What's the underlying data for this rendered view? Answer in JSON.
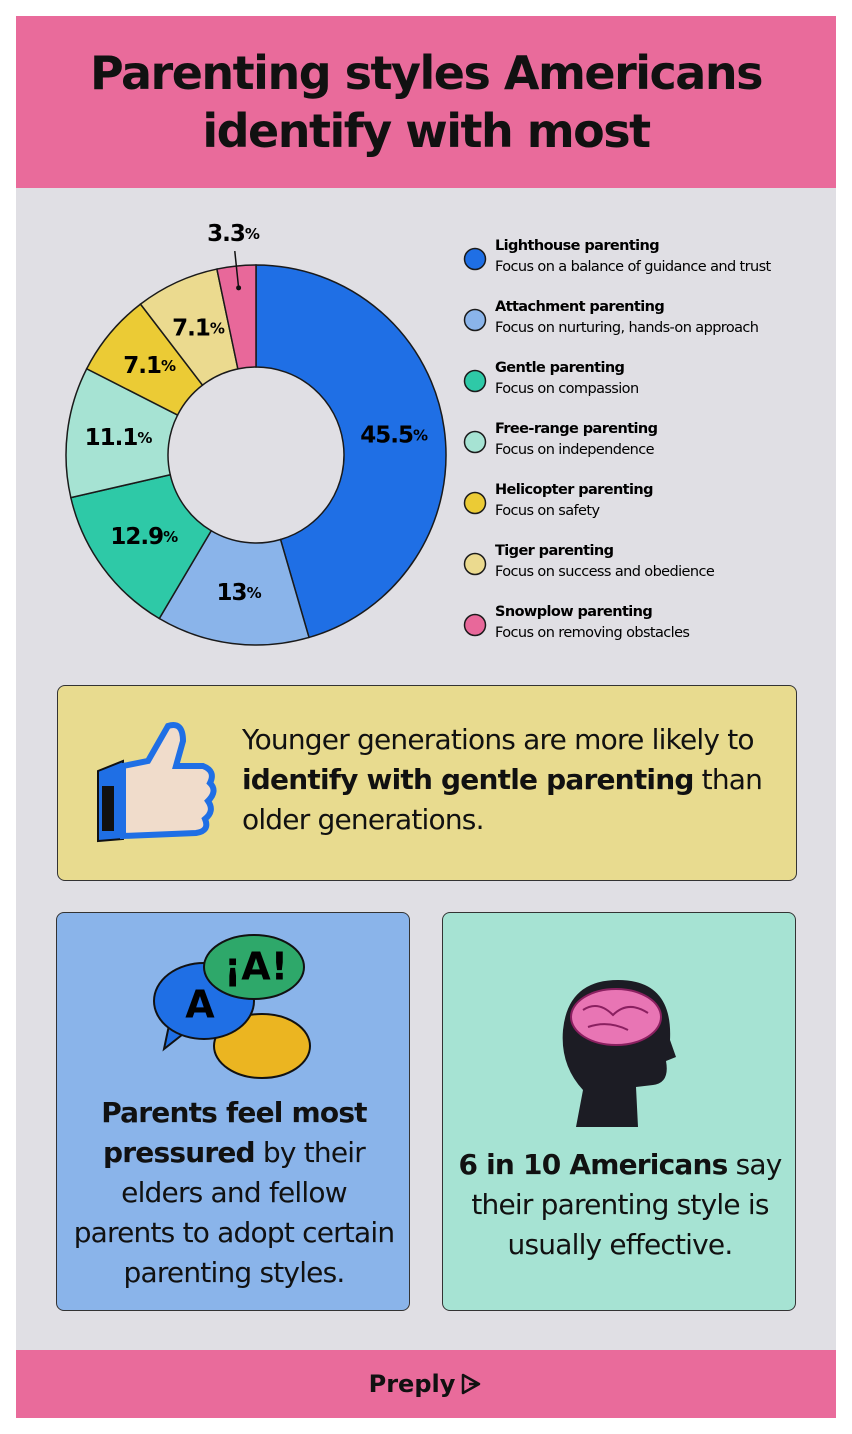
{
  "header": {
    "title": "Parenting styles Americans identify with most"
  },
  "chart_data": {
    "type": "donut",
    "categories": [
      "Lighthouse parenting",
      "Attachment parenting",
      "Gentle parenting",
      "Free-range parenting",
      "Helicopter parenting",
      "Tiger parenting",
      "Snowplow parenting"
    ],
    "descriptions": [
      "Focus on a balance of guidance and trust",
      "Focus on nurturing, hands-on approach",
      "Focus on compassion",
      "Focus on independence",
      "Focus on safety",
      "Focus on success and obedience",
      "Focus on removing obstacles"
    ],
    "values": [
      45.5,
      13,
      12.9,
      11.1,
      7.1,
      7.1,
      3.3
    ],
    "value_labels": [
      "45.5%",
      "13%",
      "12.9%",
      "11.1%",
      "7.1%",
      "7.1%",
      "3.3%"
    ],
    "colors": [
      "#1f6fe5",
      "#8ab4ea",
      "#2ec9a7",
      "#a6e3d3",
      "#ebcb35",
      "#ebda8f",
      "#e8689a"
    ]
  },
  "callouts": [
    {
      "parts": [
        {
          "text": "Younger generations are more likely to ",
          "bold": false
        },
        {
          "text": "identify with gentle parenting",
          "bold": true
        },
        {
          "text": " than older generations.",
          "bold": false
        }
      ]
    },
    {
      "icon_labels": [
        "¡A!",
        "A"
      ],
      "parts": [
        {
          "text": "Parents feel most pressured",
          "bold": true
        },
        {
          "text": " by their elders and fellow parents to adopt certain parenting styles.",
          "bold": false
        }
      ]
    },
    {
      "parts": [
        {
          "text": "6 in 10 Americans",
          "bold": true
        },
        {
          "text": " say their parenting style is usually effective.",
          "bold": false
        }
      ]
    }
  ],
  "footer": {
    "brand": "Preply"
  }
}
